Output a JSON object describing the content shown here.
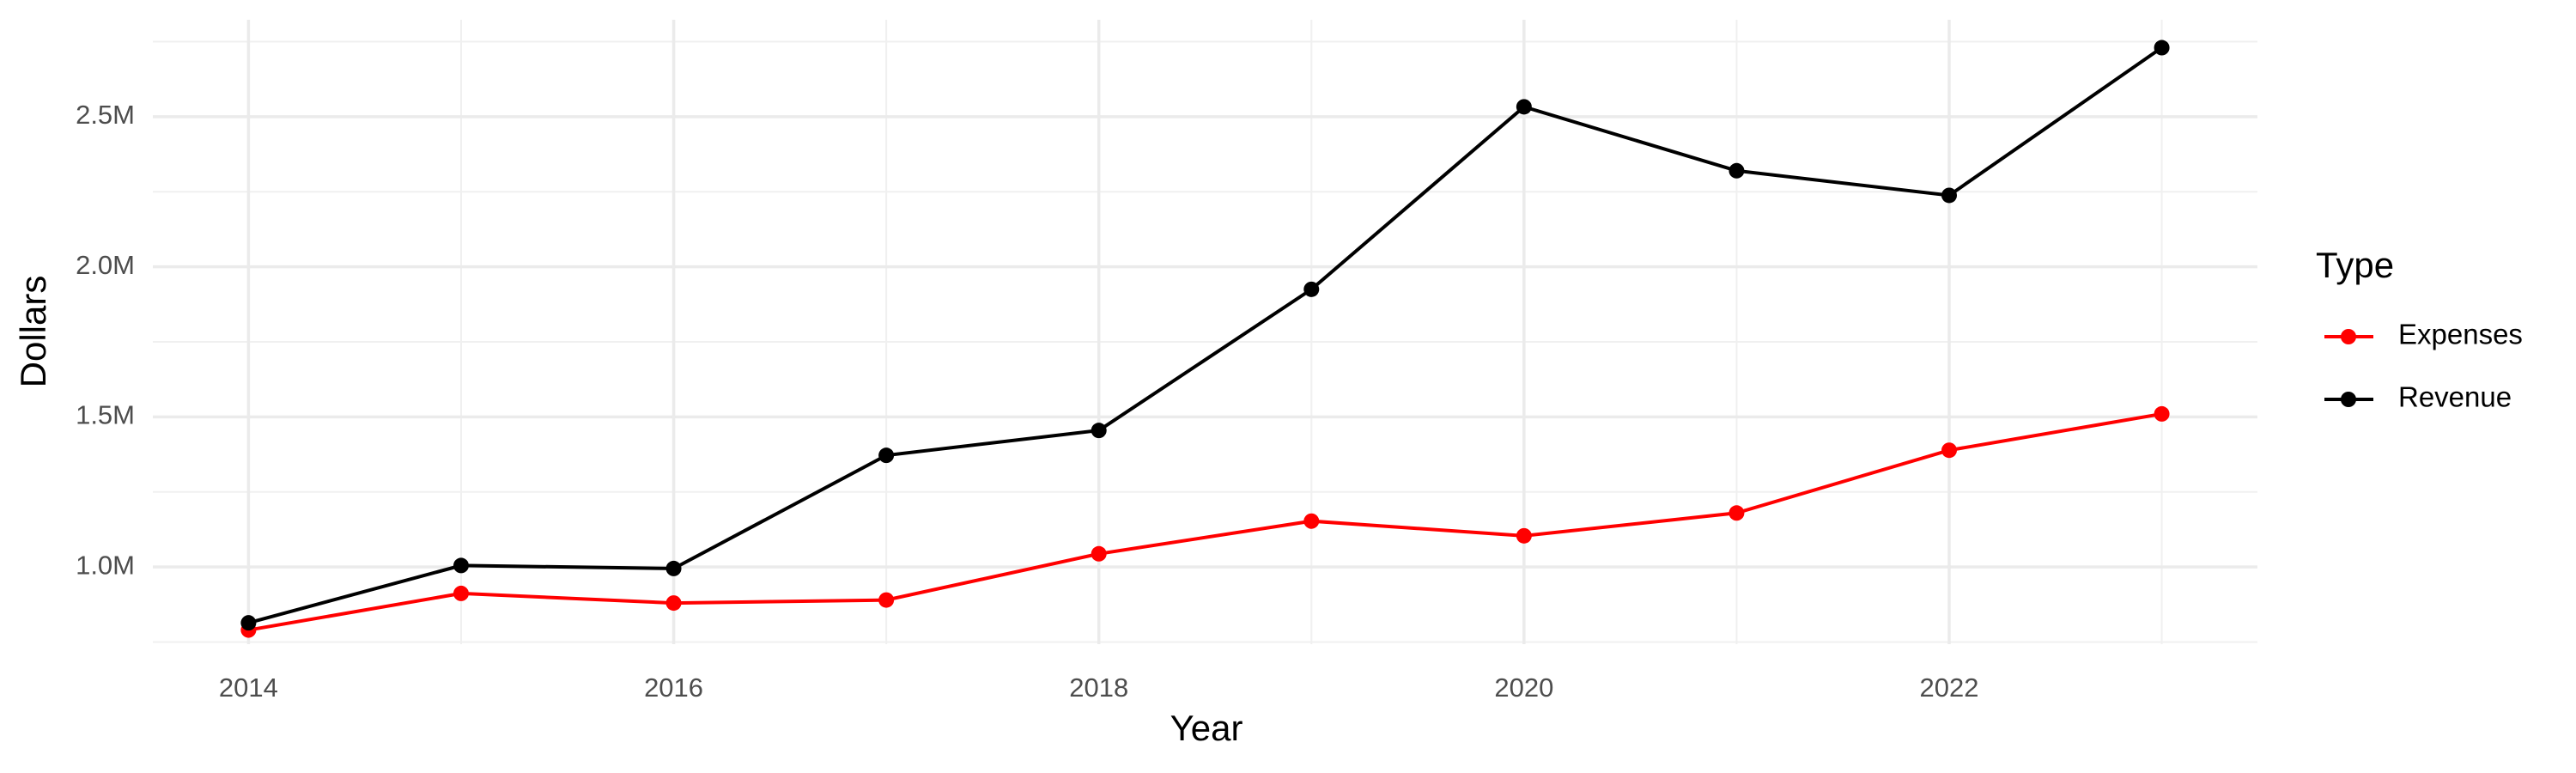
{
  "chart_data": {
    "type": "line",
    "x_label": "Year",
    "y_label": "Dollars",
    "legend_title": "Type",
    "x": [
      2014,
      2015,
      2016,
      2017,
      2018,
      2019,
      2020,
      2021,
      2022,
      2023
    ],
    "series": [
      {
        "name": "Expenses",
        "color": "#ff0000",
        "values": [
          790000,
          912000,
          880000,
          890000,
          1044000,
          1153000,
          1104000,
          1180000,
          1389000,
          1510000
        ]
      },
      {
        "name": "Revenue",
        "color": "#000000",
        "values": [
          814000,
          1005000,
          995000,
          1372000,
          1455000,
          1925000,
          2533000,
          2320000,
          2238000,
          2730000
        ]
      }
    ],
    "xlim": [
      2013.55,
      2023.45
    ],
    "xticks": [
      2014,
      2016,
      2018,
      2020,
      2022
    ],
    "xminorticks": [
      2015,
      2017,
      2019,
      2021,
      2023
    ],
    "ylim": [
      743000,
      2823000
    ],
    "yticks": [
      {
        "value": 1000000,
        "label": "1.0M"
      },
      {
        "value": 1500000,
        "label": "1.5M"
      },
      {
        "value": 2000000,
        "label": "2.0M"
      },
      {
        "value": 2500000,
        "label": "2.5M"
      }
    ],
    "yminorticks": [
      750000,
      1250000,
      1750000,
      2250000,
      2750000
    ],
    "grid": true,
    "legend": "right"
  }
}
